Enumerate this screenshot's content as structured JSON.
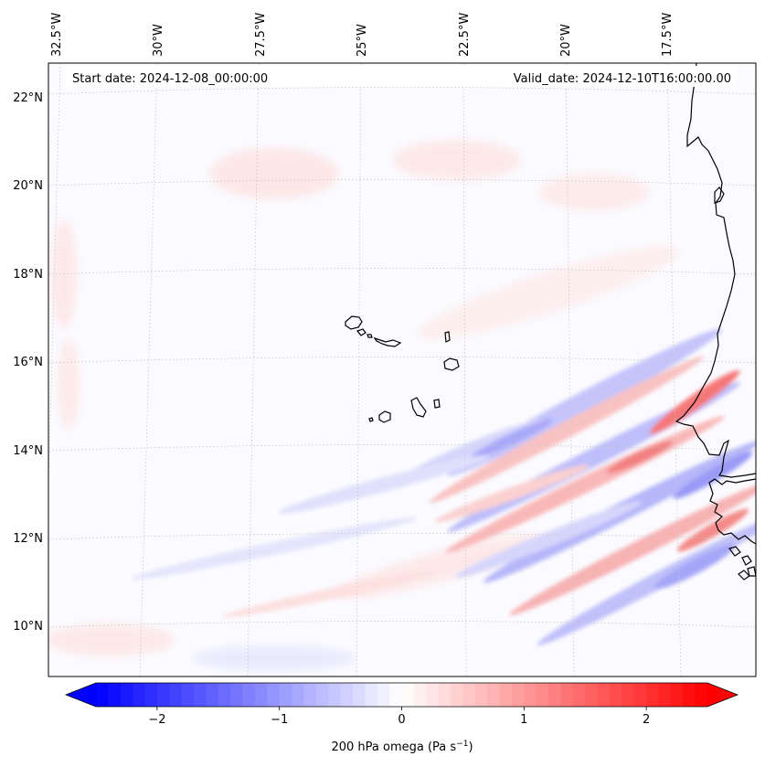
{
  "header": {
    "start_date": "Start date: 2024-12-08_00:00:00",
    "valid_date": "Valid_date: 2024-12-10T16:00:00.00"
  },
  "lon_labels": [
    "32.5°W",
    "30°W",
    "27.5°W",
    "25°W",
    "22.5°W",
    "20°W",
    "17.5°W"
  ],
  "lat_labels": [
    "22°N",
    "20°N",
    "18°N",
    "16°N",
    "14°N",
    "12°N",
    "10°N"
  ],
  "colorbar": {
    "ticks": [
      "−2",
      "−1",
      "0",
      "1",
      "2"
    ],
    "tick_values": [
      -2,
      -1,
      0,
      1,
      2
    ],
    "range": [
      -2.5,
      2.5
    ],
    "label": "200 hPa omega (Pa s",
    "label_sup": "−1",
    "label_close": ")",
    "cmap": "bwr",
    "color_negative": "#0000ff",
    "color_zero": "#ffffff",
    "color_positive": "#ff0000"
  },
  "map": {
    "coastline_color": "#000000",
    "gridline_color": "#c8c8c8",
    "gridlines": true
  }
}
